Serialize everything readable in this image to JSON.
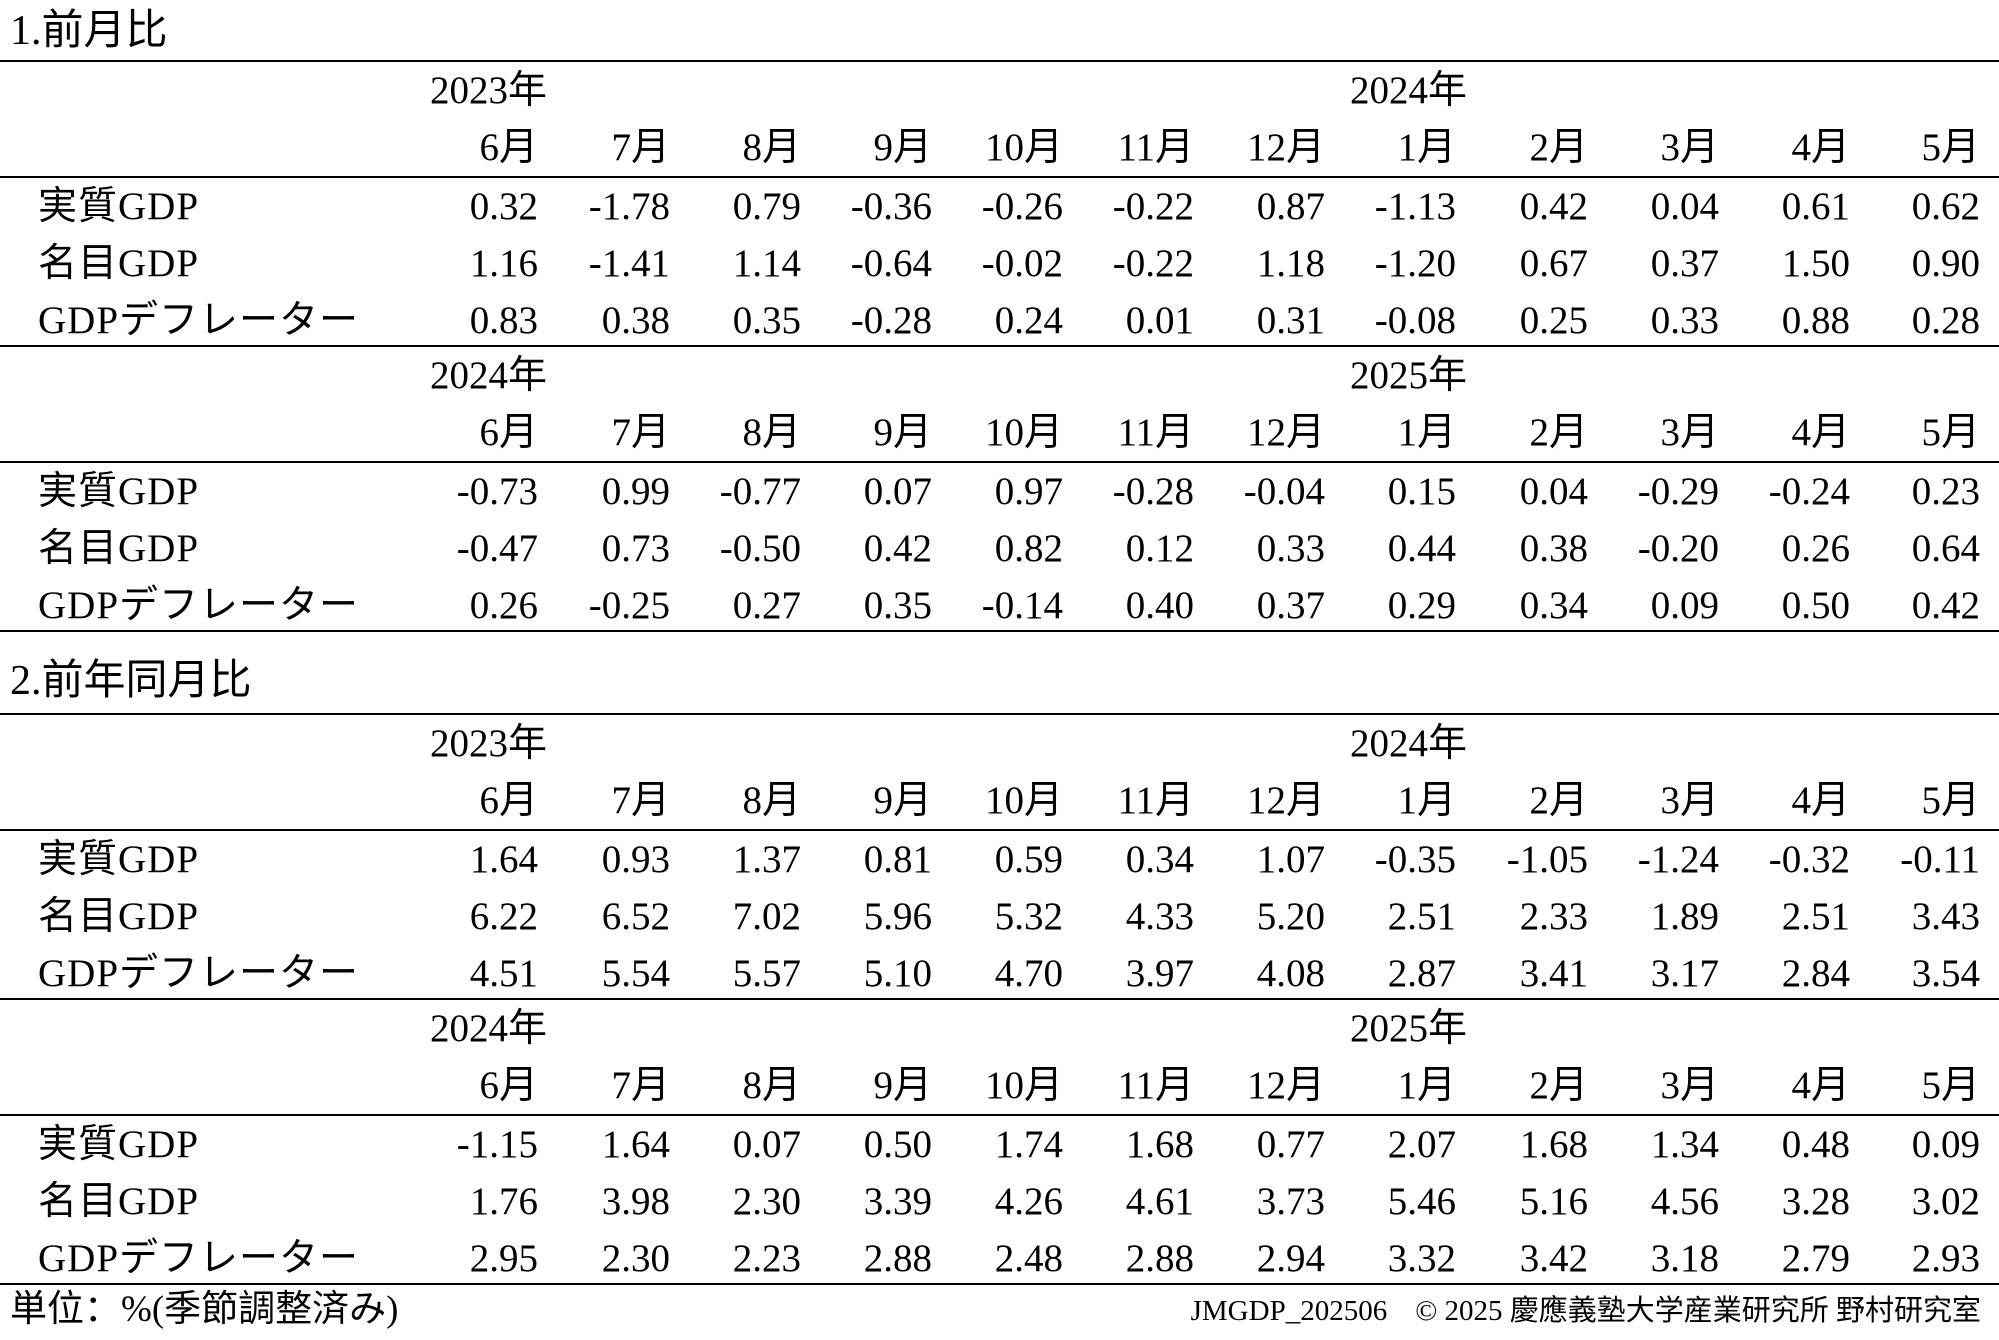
{
  "sections": [
    {
      "title": "1.前月比",
      "blocks": [
        {
          "year_start": "2023年",
          "year_end": "2024年",
          "months": [
            "6月",
            "7月",
            "8月",
            "9月",
            "10月",
            "11月",
            "12月",
            "1月",
            "2月",
            "3月",
            "4月",
            "5月"
          ],
          "rows": [
            {
              "label": "実質GDP",
              "values": [
                "0.32",
                "-1.78",
                "0.79",
                "-0.36",
                "-0.26",
                "-0.22",
                "0.87",
                "-1.13",
                "0.42",
                "0.04",
                "0.61",
                "0.62"
              ]
            },
            {
              "label": "名目GDP",
              "values": [
                "1.16",
                "-1.41",
                "1.14",
                "-0.64",
                "-0.02",
                "-0.22",
                "1.18",
                "-1.20",
                "0.67",
                "0.37",
                "1.50",
                "0.90"
              ]
            },
            {
              "label": "GDPデフレーター",
              "values": [
                "0.83",
                "0.38",
                "0.35",
                "-0.28",
                "0.24",
                "0.01",
                "0.31",
                "-0.08",
                "0.25",
                "0.33",
                "0.88",
                "0.28"
              ]
            }
          ]
        },
        {
          "year_start": "2024年",
          "year_end": "2025年",
          "months": [
            "6月",
            "7月",
            "8月",
            "9月",
            "10月",
            "11月",
            "12月",
            "1月",
            "2月",
            "3月",
            "4月",
            "5月"
          ],
          "rows": [
            {
              "label": "実質GDP",
              "values": [
                "-0.73",
                "0.99",
                "-0.77",
                "0.07",
                "0.97",
                "-0.28",
                "-0.04",
                "0.15",
                "0.04",
                "-0.29",
                "-0.24",
                "0.23"
              ]
            },
            {
              "label": "名目GDP",
              "values": [
                "-0.47",
                "0.73",
                "-0.50",
                "0.42",
                "0.82",
                "0.12",
                "0.33",
                "0.44",
                "0.38",
                "-0.20",
                "0.26",
                "0.64"
              ]
            },
            {
              "label": "GDPデフレーター",
              "values": [
                "0.26",
                "-0.25",
                "0.27",
                "0.35",
                "-0.14",
                "0.40",
                "0.37",
                "0.29",
                "0.34",
                "0.09",
                "0.50",
                "0.42"
              ]
            }
          ]
        }
      ]
    },
    {
      "title": "2.前年同月比",
      "blocks": [
        {
          "year_start": "2023年",
          "year_end": "2024年",
          "months": [
            "6月",
            "7月",
            "8月",
            "9月",
            "10月",
            "11月",
            "12月",
            "1月",
            "2月",
            "3月",
            "4月",
            "5月"
          ],
          "rows": [
            {
              "label": "実質GDP",
              "values": [
                "1.64",
                "0.93",
                "1.37",
                "0.81",
                "0.59",
                "0.34",
                "1.07",
                "-0.35",
                "-1.05",
                "-1.24",
                "-0.32",
                "-0.11"
              ]
            },
            {
              "label": "名目GDP",
              "values": [
                "6.22",
                "6.52",
                "7.02",
                "5.96",
                "5.32",
                "4.33",
                "5.20",
                "2.51",
                "2.33",
                "1.89",
                "2.51",
                "3.43"
              ]
            },
            {
              "label": "GDPデフレーター",
              "values": [
                "4.51",
                "5.54",
                "5.57",
                "5.10",
                "4.70",
                "3.97",
                "4.08",
                "2.87",
                "3.41",
                "3.17",
                "2.84",
                "3.54"
              ]
            }
          ]
        },
        {
          "year_start": "2024年",
          "year_end": "2025年",
          "months": [
            "6月",
            "7月",
            "8月",
            "9月",
            "10月",
            "11月",
            "12月",
            "1月",
            "2月",
            "3月",
            "4月",
            "5月"
          ],
          "rows": [
            {
              "label": "実質GDP",
              "values": [
                "-1.15",
                "1.64",
                "0.07",
                "0.50",
                "1.74",
                "1.68",
                "0.77",
                "2.07",
                "1.68",
                "1.34",
                "0.48",
                "0.09"
              ]
            },
            {
              "label": "名目GDP",
              "values": [
                "1.76",
                "3.98",
                "2.30",
                "3.39",
                "4.26",
                "4.61",
                "3.73",
                "5.46",
                "5.16",
                "4.56",
                "3.28",
                "3.02"
              ]
            },
            {
              "label": "GDPデフレーター",
              "values": [
                "2.95",
                "2.30",
                "2.23",
                "2.88",
                "2.48",
                "2.88",
                "2.94",
                "3.32",
                "3.42",
                "3.18",
                "2.79",
                "2.93"
              ]
            }
          ]
        }
      ]
    }
  ],
  "footer": {
    "unit_note": "単位：%(季節調整済み)",
    "doc_id": "JMGDP_202506",
    "copyright": "© 2025 慶應義塾大学産業研究所 野村研究室"
  }
}
